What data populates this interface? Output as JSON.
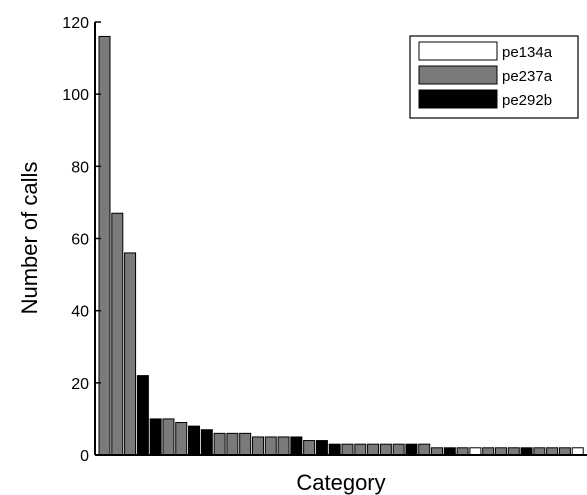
{
  "chart_data": {
    "type": "bar",
    "title": "",
    "xlabel": "Category",
    "ylabel": "Number of calls",
    "ylim": [
      0,
      120
    ],
    "yticks": [
      0,
      20,
      40,
      60,
      80,
      100,
      120
    ],
    "grid": false,
    "legend_position": "top-right",
    "legend": [
      {
        "name": "pe134a",
        "color": "#ffffff"
      },
      {
        "name": "pe237a",
        "color": "#7a7a7a"
      },
      {
        "name": "pe292b",
        "color": "#000000"
      }
    ],
    "bars": [
      {
        "value": 116,
        "series": "pe237a"
      },
      {
        "value": 67,
        "series": "pe237a"
      },
      {
        "value": 56,
        "series": "pe237a"
      },
      {
        "value": 22,
        "series": "pe292b"
      },
      {
        "value": 10,
        "series": "pe292b"
      },
      {
        "value": 10,
        "series": "pe237a"
      },
      {
        "value": 9,
        "series": "pe237a"
      },
      {
        "value": 8,
        "series": "pe292b"
      },
      {
        "value": 7,
        "series": "pe292b"
      },
      {
        "value": 6,
        "series": "pe237a"
      },
      {
        "value": 6,
        "series": "pe237a"
      },
      {
        "value": 6,
        "series": "pe237a"
      },
      {
        "value": 5,
        "series": "pe237a"
      },
      {
        "value": 5,
        "series": "pe237a"
      },
      {
        "value": 5,
        "series": "pe237a"
      },
      {
        "value": 5,
        "series": "pe292b"
      },
      {
        "value": 4,
        "series": "pe237a"
      },
      {
        "value": 4,
        "series": "pe292b"
      },
      {
        "value": 3,
        "series": "pe292b"
      },
      {
        "value": 3,
        "series": "pe237a"
      },
      {
        "value": 3,
        "series": "pe237a"
      },
      {
        "value": 3,
        "series": "pe237a"
      },
      {
        "value": 3,
        "series": "pe237a"
      },
      {
        "value": 3,
        "series": "pe237a"
      },
      {
        "value": 3,
        "series": "pe292b"
      },
      {
        "value": 3,
        "series": "pe237a"
      },
      {
        "value": 2,
        "series": "pe237a"
      },
      {
        "value": 2,
        "series": "pe292b"
      },
      {
        "value": 2,
        "series": "pe237a"
      },
      {
        "value": 2,
        "series": "pe134a"
      },
      {
        "value": 2,
        "series": "pe237a"
      },
      {
        "value": 2,
        "series": "pe237a"
      },
      {
        "value": 2,
        "series": "pe237a"
      },
      {
        "value": 2,
        "series": "pe292b"
      },
      {
        "value": 2,
        "series": "pe237a"
      },
      {
        "value": 2,
        "series": "pe237a"
      },
      {
        "value": 2,
        "series": "pe237a"
      },
      {
        "value": 2,
        "series": "pe134a"
      }
    ]
  }
}
